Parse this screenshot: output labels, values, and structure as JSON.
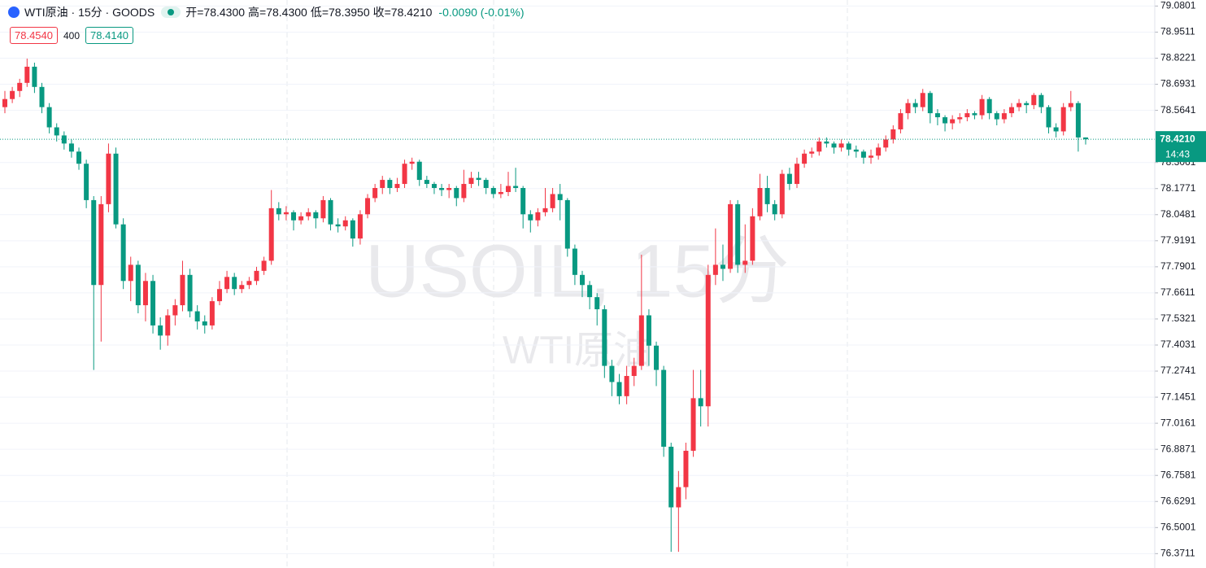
{
  "header": {
    "symbol": "WTI原油 · 15分 · GOODS",
    "open": "开=78.4300",
    "high": "高=78.4300",
    "low": "低=78.3950",
    "close": "收=78.4210",
    "change": "-0.0090 (-0.01%)"
  },
  "quote": {
    "sell": "78.4540",
    "size": "400",
    "buy": "78.4140"
  },
  "watermark": {
    "main": "USOIL, 15分",
    "sub": "WTI原油"
  },
  "price_tag": {
    "price": "78.4210",
    "countdown": "14:43"
  },
  "chart_data": {
    "type": "candlestick",
    "up_color": "#f23645",
    "down_color": "#089981",
    "grid": true,
    "ylim": [
      76.3,
      79.11
    ],
    "yticks": [
      79.0801,
      78.9511,
      78.8221,
      78.6931,
      78.5641,
      78.3061,
      78.1771,
      78.0481,
      77.9191,
      77.7901,
      77.6611,
      77.5321,
      77.4031,
      77.2741,
      77.1451,
      77.0161,
      76.8871,
      76.7581,
      76.6291,
      76.5001,
      76.3711
    ],
    "candles": [
      [
        78.58,
        78.66,
        78.55,
        78.62
      ],
      [
        78.62,
        78.68,
        78.6,
        78.66
      ],
      [
        78.66,
        78.72,
        78.63,
        78.7
      ],
      [
        78.7,
        78.82,
        78.68,
        78.78
      ],
      [
        78.78,
        78.8,
        78.65,
        78.68
      ],
      [
        78.68,
        78.7,
        78.55,
        78.58
      ],
      [
        78.58,
        78.6,
        78.45,
        78.48
      ],
      [
        78.48,
        78.5,
        78.41,
        78.44
      ],
      [
        78.44,
        78.46,
        78.37,
        78.4
      ],
      [
        78.4,
        78.42,
        78.33,
        78.36
      ],
      [
        78.36,
        78.38,
        78.27,
        78.3
      ],
      [
        78.3,
        78.32,
        78.08,
        78.12
      ],
      [
        78.12,
        78.14,
        77.28,
        77.7
      ],
      [
        77.7,
        78.14,
        77.42,
        78.1
      ],
      [
        78.1,
        78.4,
        78.06,
        78.35
      ],
      [
        78.35,
        78.38,
        77.98,
        78.0
      ],
      [
        78.0,
        78.03,
        77.68,
        77.72
      ],
      [
        77.72,
        77.84,
        77.62,
        77.8
      ],
      [
        77.8,
        77.82,
        77.56,
        77.6
      ],
      [
        77.6,
        77.76,
        77.52,
        77.72
      ],
      [
        77.72,
        77.75,
        77.46,
        77.5
      ],
      [
        77.5,
        77.54,
        77.38,
        77.45
      ],
      [
        77.45,
        77.58,
        77.4,
        77.55
      ],
      [
        77.55,
        77.63,
        77.5,
        77.6
      ],
      [
        77.6,
        77.82,
        77.57,
        77.75
      ],
      [
        77.75,
        77.78,
        77.54,
        77.57
      ],
      [
        77.57,
        77.6,
        77.48,
        77.52
      ],
      [
        77.52,
        77.55,
        77.46,
        77.5
      ],
      [
        77.5,
        77.64,
        77.48,
        77.62
      ],
      [
        77.62,
        77.72,
        77.6,
        77.68
      ],
      [
        77.68,
        77.77,
        77.66,
        77.74
      ],
      [
        77.74,
        77.76,
        77.65,
        77.68
      ],
      [
        77.68,
        77.72,
        77.66,
        77.7
      ],
      [
        77.7,
        77.74,
        77.68,
        77.72
      ],
      [
        77.72,
        77.79,
        77.7,
        77.77
      ],
      [
        77.77,
        77.84,
        77.75,
        77.82
      ],
      [
        77.82,
        78.17,
        77.8,
        78.08
      ],
      [
        78.08,
        78.11,
        78.02,
        78.05
      ],
      [
        78.05,
        78.09,
        78.02,
        78.06
      ],
      [
        78.06,
        78.07,
        77.97,
        78.02
      ],
      [
        78.02,
        78.06,
        78.0,
        78.04
      ],
      [
        78.04,
        78.08,
        78.02,
        78.06
      ],
      [
        78.06,
        78.07,
        77.98,
        78.03
      ],
      [
        78.03,
        78.14,
        78.01,
        78.12
      ],
      [
        78.12,
        78.13,
        77.97,
        78.0
      ],
      [
        78.0,
        78.03,
        77.96,
        77.99
      ],
      [
        77.99,
        78.04,
        77.97,
        78.02
      ],
      [
        78.02,
        78.03,
        77.89,
        77.93
      ],
      [
        77.93,
        78.07,
        77.9,
        78.05
      ],
      [
        78.05,
        78.15,
        78.03,
        78.13
      ],
      [
        78.13,
        78.2,
        78.11,
        78.18
      ],
      [
        78.18,
        78.24,
        78.15,
        78.22
      ],
      [
        78.22,
        78.23,
        78.15,
        78.18
      ],
      [
        78.18,
        78.23,
        78.16,
        78.2
      ],
      [
        78.2,
        78.32,
        78.18,
        78.3
      ],
      [
        78.3,
        78.33,
        78.27,
        78.31
      ],
      [
        78.31,
        78.32,
        78.19,
        78.22
      ],
      [
        78.22,
        78.24,
        78.18,
        78.2
      ],
      [
        78.2,
        78.21,
        78.15,
        78.18
      ],
      [
        78.18,
        78.2,
        78.14,
        78.17
      ],
      [
        78.17,
        78.2,
        78.13,
        78.18
      ],
      [
        78.18,
        78.19,
        78.09,
        78.13
      ],
      [
        78.13,
        78.27,
        78.11,
        78.2
      ],
      [
        78.2,
        78.26,
        78.18,
        78.23
      ],
      [
        78.23,
        78.26,
        78.19,
        78.22
      ],
      [
        78.22,
        78.23,
        78.15,
        78.18
      ],
      [
        78.18,
        78.19,
        78.13,
        78.15
      ],
      [
        78.15,
        78.2,
        78.13,
        78.16
      ],
      [
        78.16,
        78.26,
        78.14,
        78.19
      ],
      [
        78.19,
        78.28,
        78.16,
        78.18
      ],
      [
        78.18,
        78.19,
        77.98,
        78.05
      ],
      [
        78.05,
        78.07,
        77.96,
        78.02
      ],
      [
        78.02,
        78.08,
        77.99,
        78.06
      ],
      [
        78.06,
        78.18,
        78.04,
        78.08
      ],
      [
        78.08,
        78.18,
        78.06,
        78.15
      ],
      [
        78.15,
        78.2,
        78.02,
        78.12
      ],
      [
        78.12,
        78.13,
        77.84,
        77.88
      ],
      [
        77.88,
        77.9,
        77.7,
        77.75
      ],
      [
        77.75,
        77.77,
        77.64,
        77.7
      ],
      [
        77.7,
        77.72,
        77.58,
        77.64
      ],
      [
        77.64,
        77.66,
        77.5,
        77.58
      ],
      [
        77.58,
        77.6,
        77.24,
        77.3
      ],
      [
        77.3,
        77.33,
        77.15,
        77.22
      ],
      [
        77.22,
        77.26,
        77.11,
        77.15
      ],
      [
        77.15,
        77.3,
        77.11,
        77.25
      ],
      [
        77.25,
        77.34,
        77.2,
        77.3
      ],
      [
        77.3,
        77.85,
        77.28,
        77.55
      ],
      [
        77.55,
        77.58,
        77.3,
        77.4
      ],
      [
        77.4,
        77.42,
        77.2,
        77.28
      ],
      [
        77.28,
        77.3,
        76.85,
        76.9
      ],
      [
        76.9,
        76.92,
        76.38,
        76.6
      ],
      [
        76.6,
        76.78,
        76.38,
        76.7
      ],
      [
        76.7,
        76.92,
        76.64,
        76.88
      ],
      [
        76.88,
        77.28,
        76.85,
        77.14
      ],
      [
        77.14,
        77.28,
        77.0,
        77.1
      ],
      [
        77.1,
        77.8,
        77.0,
        77.75
      ],
      [
        77.75,
        77.98,
        77.7,
        77.8
      ],
      [
        77.8,
        77.9,
        77.72,
        77.78
      ],
      [
        77.78,
        78.12,
        77.76,
        78.1
      ],
      [
        78.1,
        78.12,
        77.76,
        77.8
      ],
      [
        77.8,
        78.0,
        77.76,
        77.82
      ],
      [
        77.82,
        78.08,
        77.8,
        78.04
      ],
      [
        78.04,
        78.25,
        78.02,
        78.18
      ],
      [
        78.18,
        78.24,
        78.06,
        78.1
      ],
      [
        78.1,
        78.12,
        78.02,
        78.05
      ],
      [
        78.05,
        78.27,
        78.03,
        78.25
      ],
      [
        78.25,
        78.28,
        78.17,
        78.2
      ],
      [
        78.2,
        78.33,
        78.18,
        78.3
      ],
      [
        78.3,
        78.37,
        78.28,
        78.35
      ],
      [
        78.35,
        78.38,
        78.33,
        78.36
      ],
      [
        78.36,
        78.43,
        78.34,
        78.41
      ],
      [
        78.41,
        78.43,
        78.38,
        78.4
      ],
      [
        78.4,
        78.41,
        78.35,
        78.38
      ],
      [
        78.38,
        78.42,
        78.36,
        78.4
      ],
      [
        78.4,
        78.41,
        78.34,
        78.37
      ],
      [
        78.37,
        78.39,
        78.33,
        78.36
      ],
      [
        78.36,
        78.37,
        78.3,
        78.33
      ],
      [
        78.33,
        78.37,
        78.3,
        78.34
      ],
      [
        78.34,
        78.4,
        78.32,
        78.38
      ],
      [
        78.38,
        78.44,
        78.36,
        78.42
      ],
      [
        78.42,
        78.49,
        78.4,
        78.47
      ],
      [
        78.47,
        78.57,
        78.45,
        78.55
      ],
      [
        78.55,
        78.62,
        78.52,
        78.6
      ],
      [
        78.6,
        78.62,
        78.55,
        78.58
      ],
      [
        78.58,
        78.67,
        78.56,
        78.65
      ],
      [
        78.65,
        78.66,
        78.5,
        78.55
      ],
      [
        78.55,
        78.57,
        78.49,
        78.53
      ],
      [
        78.53,
        78.54,
        78.46,
        78.5
      ],
      [
        78.5,
        78.54,
        78.47,
        78.52
      ],
      [
        78.52,
        78.55,
        78.5,
        78.53
      ],
      [
        78.53,
        78.57,
        78.51,
        78.55
      ],
      [
        78.55,
        78.56,
        78.52,
        78.54
      ],
      [
        78.54,
        78.64,
        78.52,
        78.62
      ],
      [
        78.62,
        78.63,
        78.52,
        78.55
      ],
      [
        78.55,
        78.56,
        78.49,
        78.52
      ],
      [
        78.52,
        78.57,
        78.5,
        78.55
      ],
      [
        78.55,
        78.6,
        78.53,
        78.58
      ],
      [
        78.58,
        78.62,
        78.56,
        78.6
      ],
      [
        78.6,
        78.61,
        78.55,
        78.59
      ],
      [
        78.59,
        78.65,
        78.57,
        78.64
      ],
      [
        78.64,
        78.65,
        78.55,
        78.58
      ],
      [
        78.58,
        78.59,
        78.45,
        78.48
      ],
      [
        78.48,
        78.5,
        78.43,
        78.46
      ],
      [
        78.46,
        78.6,
        78.44,
        78.58
      ],
      [
        78.58,
        78.66,
        78.56,
        78.6
      ],
      [
        78.6,
        78.61,
        78.36,
        78.43
      ],
      [
        78.43,
        78.43,
        78.395,
        78.421
      ]
    ]
  }
}
